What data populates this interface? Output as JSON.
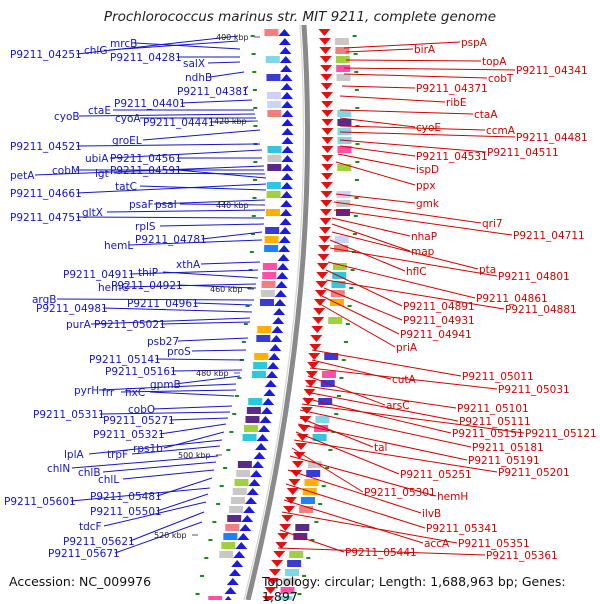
{
  "title": "Prochlorococcus marinus str. MIT 9211, complete genome",
  "footer": {
    "accession": "Accession: NC_009976",
    "topology": "Topology: circular; Length: 1,688,963 bp; Genes: 1,897"
  },
  "colors": {
    "left_genes": "#1515c8",
    "right_genes": "#d40000",
    "backbone": "#8a8a8a"
  },
  "kbp_markers": [
    "400 kbp",
    "420 kbp",
    "440 kbp",
    "460 kbp",
    "480 kbp",
    "500 kbp",
    "520 kbp"
  ],
  "left_labels": [
    "P9211_04251",
    "chlG",
    "mrcB",
    "P9211_04281",
    "salX",
    "ndhB",
    "P9211_04381",
    "P9211_04401",
    "ctaE",
    "cyoB",
    "cyoA",
    "P9211_04441",
    "groEL",
    "P9211_04521",
    "ubiA",
    "P9211_04561",
    "petA",
    "cobM",
    "lgt",
    "P9211_04591",
    "P9211_04661",
    "tatC",
    "psaF",
    "psaI",
    "gltX",
    "P9211_04751",
    "rplS",
    "P9211_04781",
    "hemL",
    "xthA",
    "P9211_04911",
    "thiP",
    "hemC",
    "P9211_04921",
    "argB",
    "P9211_04961",
    "P9211_04981",
    "purA",
    "P9211_05021",
    "psb27",
    "proS",
    "P9211_05141",
    "P9211_05161",
    "gpmB",
    "pyrH",
    "frr",
    "fixC",
    "cobO",
    "P9211_05311",
    "P9211_05271",
    "P9211_05321",
    "rps1b",
    "lplA",
    "trpF",
    "chlN",
    "chlB",
    "chlL",
    "P9211_05481",
    "P9211_05601",
    "P9211_05501",
    "tdcF",
    "P9211_05621",
    "P9211_05671"
  ],
  "right_labels": [
    "pspA",
    "birA",
    "topA",
    "P9211_04341",
    "cobT",
    "P9211_04371",
    "ribE",
    "ctaA",
    "cyoE",
    "ccmA",
    "P9211_04481",
    "P9211_04511",
    "P9211_04531",
    "ispD",
    "ppx",
    "gmk",
    "qri7",
    "P9211_04711",
    "nhaP",
    "map",
    "pta",
    "hflC",
    "P9211_04801",
    "P9211_04861",
    "P9211_04891",
    "P9211_04881",
    "P9211_04931",
    "P9211_04941",
    "priA",
    "P9211_05011",
    "cutA",
    "P9211_05031",
    "arsC",
    "P9211_05101",
    "P9211_05111",
    "P9211_05151",
    "P9211_05121",
    "P9211_05181",
    "tal",
    "P9211_05191",
    "P9211_05251",
    "P9211_05201",
    "P9211_05301",
    "hemH",
    "ilvB",
    "P9211_05341",
    "accA",
    "P9211_05351",
    "P9211_05441",
    "P9211_05361"
  ]
}
